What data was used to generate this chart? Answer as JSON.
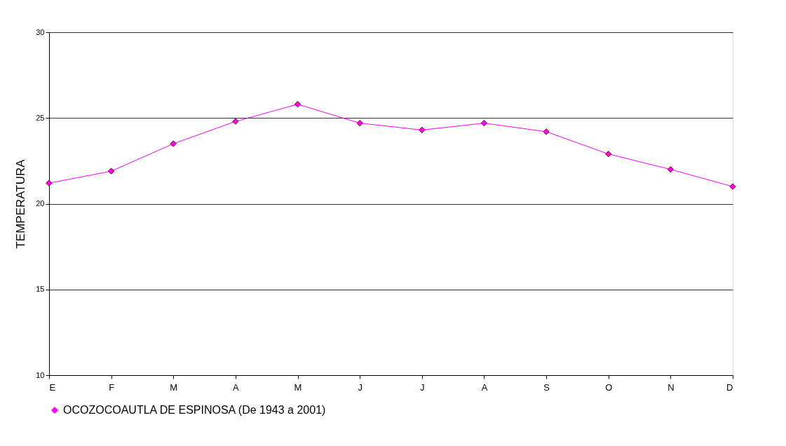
{
  "chart_data": {
    "type": "line",
    "ylabel": "TEMPERATURA",
    "categories": [
      "E",
      "F",
      "M",
      "A",
      "M",
      "J",
      "J",
      "A",
      "S",
      "O",
      "N",
      "D"
    ],
    "series": [
      {
        "name": "OCOZOCOAUTLA DE ESPINOSA (De 1943 a 2001)",
        "color": "#ff00ff",
        "values": [
          21.2,
          21.9,
          23.5,
          24.8,
          25.8,
          24.7,
          24.3,
          24.7,
          24.2,
          22.9,
          22.0,
          21.0
        ]
      }
    ],
    "ylim": [
      10,
      30
    ],
    "yticks": [
      10,
      15,
      20,
      25,
      30
    ],
    "grid": "y",
    "legend": "bottom",
    "marker": "diamond",
    "line_style": "solid"
  }
}
